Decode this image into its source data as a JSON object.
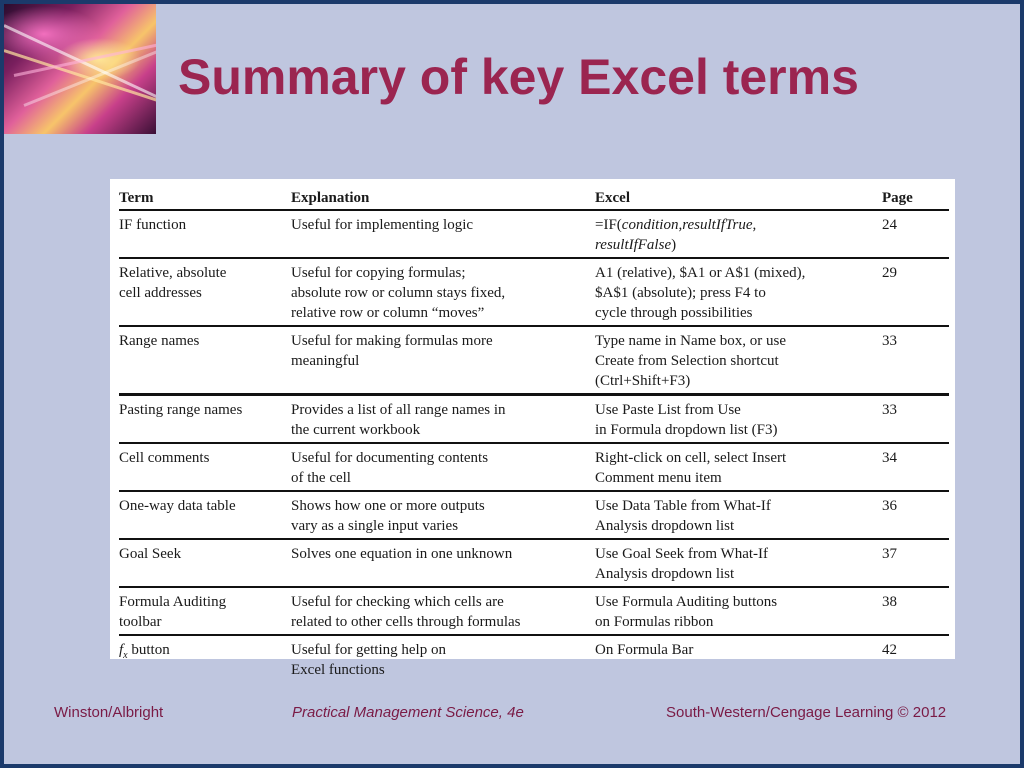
{
  "title": "Summary of key Excel terms",
  "table": {
    "headers": {
      "term": "Term",
      "explanation": "Explanation",
      "excel": "Excel",
      "page": "Page"
    },
    "rows": [
      {
        "term": [
          "IF function"
        ],
        "explanation": [
          "Useful for implementing logic"
        ],
        "excel_prefix": "=IF(",
        "excel_italic_1": "condition,resultIfTrue,",
        "excel_italic_2": "resultIfFalse",
        "excel_suffix": ")",
        "page": "24"
      },
      {
        "term": [
          "Relative, absolute",
          "cell addresses"
        ],
        "explanation": [
          "Useful for copying formulas;",
          "absolute row or column stays fixed,",
          "relative row or column “moves”"
        ],
        "excel": [
          "A1 (relative), $A1 or A$1 (mixed),",
          "$A$1 (absolute); press F4 to",
          "cycle through possibilities"
        ],
        "page": "29"
      },
      {
        "term": [
          "Range names"
        ],
        "explanation": [
          "Useful for making formulas more",
          "meaningful"
        ],
        "excel": [
          "Type name in Name box, or use",
          "Create from Selection shortcut",
          "(Ctrl+Shift+F3)"
        ],
        "page": "33"
      },
      {
        "term": [
          "Pasting range names"
        ],
        "explanation": [
          "Provides a list of all range names in",
          "the current workbook"
        ],
        "excel": [
          "Use Paste List from Use",
          "in Formula dropdown list (F3)"
        ],
        "page": "33"
      },
      {
        "term": [
          "Cell comments"
        ],
        "explanation": [
          "Useful for documenting contents",
          "of the cell"
        ],
        "excel": [
          "Right-click on cell, select Insert",
          "Comment menu item"
        ],
        "page": "34"
      },
      {
        "term": [
          "One-way data table"
        ],
        "explanation": [
          "Shows how one or more outputs",
          "vary as a single input varies"
        ],
        "excel": [
          "Use Data Table from What-If",
          "Analysis dropdown list"
        ],
        "page": "36"
      },
      {
        "term": [
          "Goal Seek"
        ],
        "explanation": [
          "Solves one equation in one unknown"
        ],
        "excel": [
          "Use Goal Seek from What-If",
          "Analysis dropdown list"
        ],
        "page": "37"
      },
      {
        "term": [
          "Formula Auditing",
          "toolbar"
        ],
        "explanation": [
          "Useful for checking which cells are",
          "related to other cells through formulas"
        ],
        "excel": [
          "Use Formula Auditing buttons",
          "on Formulas ribbon"
        ],
        "page": "38"
      },
      {
        "term_symbol": "f",
        "term_sub": "x",
        "term_rest": " button",
        "explanation": [
          "Useful for getting help on",
          "Excel functions"
        ],
        "excel": [
          "On Formula Bar"
        ],
        "page": "42"
      }
    ]
  },
  "footer": {
    "left": "Winston/Albright",
    "center": "Practical Management Science, 4e",
    "right": "South-Western/Cengage Learning © 2012"
  }
}
